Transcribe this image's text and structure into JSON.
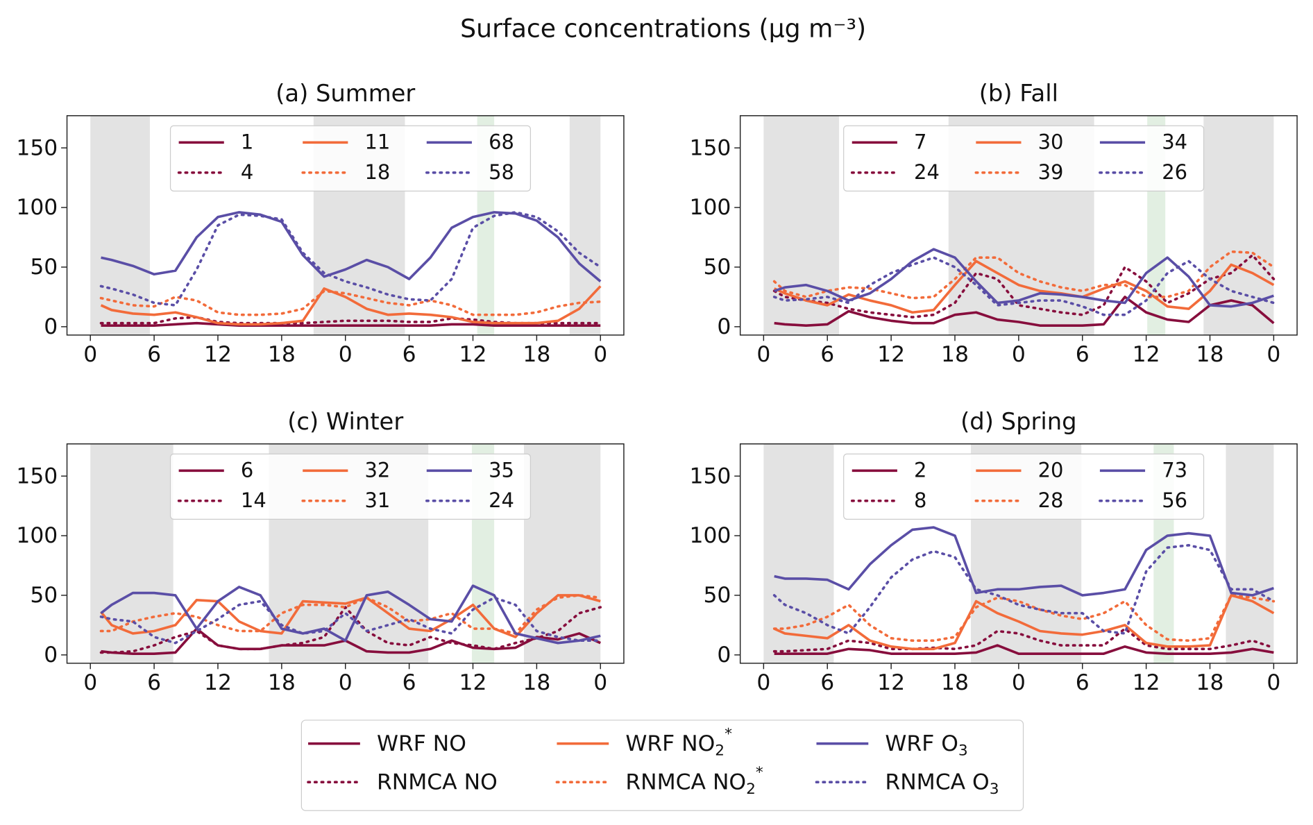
{
  "title": "Surface concentrations (μg m⁻³)",
  "legend": {
    "entries": [
      {
        "text": "WRF NO",
        "color": "#870e3d",
        "style": "solid"
      },
      {
        "text": "RNMCA NO",
        "color": "#870e3d",
        "style": "dotted"
      },
      {
        "text": "WRF NO",
        "sub": "2",
        "sup": "*",
        "color": "#f26b3a",
        "style": "solid"
      },
      {
        "text": "RNMCA NO",
        "sub": "2",
        "sup": "*",
        "color": "#f26b3a",
        "style": "dotted"
      },
      {
        "text": "WRF O",
        "sub": "3",
        "color": "#5a4ea6",
        "style": "solid"
      },
      {
        "text": "RNMCA O",
        "sub": "3",
        "color": "#5a4ea6",
        "style": "dotted"
      }
    ]
  },
  "chart_data": [
    {
      "type": "line",
      "title": "(a) Summer",
      "x": [
        1,
        2,
        4,
        6,
        8,
        10,
        12,
        14,
        16,
        18,
        20,
        22,
        24,
        26,
        28,
        30,
        32,
        34,
        36,
        38,
        40,
        42,
        44,
        46,
        48
      ],
      "xlim": [
        -2.2,
        50.2
      ],
      "ylim": [
        -7,
        177
      ],
      "xticks": [
        0,
        6,
        12,
        18,
        {
          "value": 24,
          "label": "0"
        },
        {
          "value": 30,
          "label": "6"
        },
        {
          "value": 36,
          "label": "12"
        },
        {
          "value": 42,
          "label": "18"
        },
        {
          "value": 48,
          "label": "0"
        }
      ],
      "yticks": [
        0,
        50,
        100,
        150
      ],
      "shaded": [
        {
          "start": 0,
          "end": 5.6,
          "color": "#e3e3e3"
        },
        {
          "start": 21,
          "end": 29.6,
          "color": "#e3e3e3"
        },
        {
          "start": 45.1,
          "end": 48,
          "color": "#e3e3e3"
        },
        {
          "start": 36.4,
          "end": 38,
          "color": "#e2efe2"
        }
      ],
      "series": [
        {
          "name": "1",
          "color": "#870e3d",
          "style": "solid",
          "values": [
            1,
            1,
            1,
            1,
            2,
            3,
            2,
            1,
            1,
            1,
            1,
            1,
            1,
            1,
            1,
            1,
            1,
            2,
            2,
            1,
            1,
            1,
            1,
            1,
            1
          ]
        },
        {
          "name": "4",
          "color": "#870e3d",
          "style": "dotted",
          "values": [
            3,
            3,
            3,
            3,
            7,
            8,
            4,
            3,
            3,
            3,
            3,
            4,
            5,
            5,
            5,
            4,
            4,
            7,
            6,
            4,
            3,
            3,
            3,
            3,
            3
          ]
        },
        {
          "name": "11",
          "color": "#f26b3a",
          "style": "solid",
          "values": [
            18,
            14,
            11,
            10,
            12,
            8,
            3,
            2,
            2,
            3,
            5,
            32,
            25,
            15,
            10,
            11,
            10,
            8,
            4,
            3,
            3,
            3,
            5,
            15,
            34
          ]
        },
        {
          "name": "18",
          "color": "#f26b3a",
          "style": "dotted",
          "values": [
            24,
            22,
            18,
            17,
            25,
            22,
            12,
            10,
            10,
            11,
            15,
            30,
            28,
            24,
            20,
            18,
            22,
            18,
            10,
            10,
            10,
            12,
            17,
            20,
            21
          ]
        },
        {
          "name": "68",
          "color": "#5a4ea6",
          "style": "solid",
          "values": [
            58,
            56,
            51,
            44,
            47,
            75,
            92,
            96,
            94,
            88,
            60,
            42,
            48,
            56,
            50,
            40,
            58,
            83,
            92,
            96,
            95,
            89,
            75,
            53,
            38
          ]
        },
        {
          "name": "58",
          "color": "#5a4ea6",
          "style": "dotted",
          "values": [
            34,
            32,
            27,
            20,
            18,
            48,
            85,
            94,
            93,
            90,
            62,
            45,
            38,
            33,
            27,
            23,
            22,
            40,
            83,
            93,
            96,
            92,
            80,
            62,
            50
          ]
        }
      ]
    },
    {
      "type": "line",
      "title": "(b) Fall",
      "x": [
        1,
        2,
        4,
        6,
        8,
        10,
        12,
        14,
        16,
        18,
        20,
        22,
        24,
        26,
        28,
        30,
        32,
        34,
        36,
        38,
        40,
        42,
        44,
        46,
        48
      ],
      "xlim": [
        -2.2,
        50.2
      ],
      "ylim": [
        -7,
        177
      ],
      "xticks": [
        0,
        6,
        12,
        18,
        {
          "value": 24,
          "label": "0"
        },
        {
          "value": 30,
          "label": "6"
        },
        {
          "value": 36,
          "label": "12"
        },
        {
          "value": 42,
          "label": "18"
        },
        {
          "value": 48,
          "label": "0"
        }
      ],
      "yticks": [
        0,
        50,
        100,
        150
      ],
      "shaded": [
        {
          "start": 0,
          "end": 7.1,
          "color": "#e3e3e3"
        },
        {
          "start": 17.4,
          "end": 31.1,
          "color": "#e3e3e3"
        },
        {
          "start": 41.4,
          "end": 48,
          "color": "#e3e3e3"
        },
        {
          "start": 36.1,
          "end": 37.8,
          "color": "#e2efe2"
        }
      ],
      "series": [
        {
          "name": "7",
          "color": "#870e3d",
          "style": "solid",
          "values": [
            3,
            2,
            1,
            2,
            13,
            8,
            5,
            3,
            3,
            10,
            12,
            6,
            4,
            1,
            1,
            1,
            2,
            25,
            12,
            6,
            4,
            18,
            22,
            18,
            3
          ]
        },
        {
          "name": "24",
          "color": "#870e3d",
          "style": "dotted",
          "values": [
            30,
            25,
            22,
            20,
            15,
            12,
            10,
            8,
            10,
            20,
            45,
            40,
            18,
            15,
            12,
            10,
            18,
            50,
            38,
            20,
            28,
            40,
            45,
            60,
            40
          ]
        },
        {
          "name": "30",
          "color": "#f26b3a",
          "style": "solid",
          "values": [
            32,
            28,
            22,
            18,
            27,
            22,
            18,
            12,
            14,
            35,
            55,
            45,
            35,
            30,
            28,
            25,
            32,
            38,
            30,
            17,
            15,
            30,
            52,
            45,
            35
          ]
        },
        {
          "name": "39",
          "color": "#f26b3a",
          "style": "dotted",
          "values": [
            38,
            30,
            25,
            30,
            33,
            32,
            28,
            24,
            25,
            40,
            58,
            58,
            45,
            38,
            33,
            30,
            35,
            35,
            25,
            25,
            30,
            50,
            63,
            62,
            50
          ]
        },
        {
          "name": "34",
          "color": "#5a4ea6",
          "style": "solid",
          "values": [
            30,
            33,
            35,
            30,
            22,
            28,
            40,
            55,
            65,
            58,
            38,
            20,
            22,
            28,
            27,
            25,
            22,
            20,
            45,
            58,
            42,
            18,
            17,
            20,
            26
          ]
        },
        {
          "name": "26",
          "color": "#5a4ea6",
          "style": "dotted",
          "values": [
            25,
            22,
            23,
            25,
            20,
            35,
            45,
            52,
            58,
            50,
            35,
            18,
            20,
            22,
            22,
            17,
            10,
            10,
            22,
            45,
            55,
            40,
            30,
            25,
            20
          ]
        }
      ]
    },
    {
      "type": "line",
      "title": "(c) Winter",
      "x": [
        1,
        2,
        4,
        6,
        8,
        10,
        12,
        14,
        16,
        18,
        20,
        22,
        24,
        26,
        28,
        30,
        32,
        34,
        36,
        38,
        40,
        42,
        44,
        46,
        48
      ],
      "xlim": [
        -2.2,
        50.2
      ],
      "ylim": [
        -7,
        177
      ],
      "xticks": [
        0,
        6,
        12,
        18,
        {
          "value": 24,
          "label": "0"
        },
        {
          "value": 30,
          "label": "6"
        },
        {
          "value": 36,
          "label": "12"
        },
        {
          "value": 42,
          "label": "18"
        },
        {
          "value": 48,
          "label": "0"
        }
      ],
      "yticks": [
        0,
        50,
        100,
        150
      ],
      "shaded": [
        {
          "start": 0,
          "end": 7.8,
          "color": "#e3e3e3"
        },
        {
          "start": 16.8,
          "end": 31.8,
          "color": "#e3e3e3"
        },
        {
          "start": 40.8,
          "end": 48,
          "color": "#e3e3e3"
        },
        {
          "start": 35.9,
          "end": 38,
          "color": "#e2efe2"
        }
      ],
      "series": [
        {
          "name": "6",
          "color": "#870e3d",
          "style": "solid",
          "values": [
            3,
            2,
            1,
            1,
            2,
            22,
            8,
            5,
            5,
            8,
            8,
            8,
            12,
            3,
            2,
            2,
            5,
            12,
            6,
            5,
            6,
            15,
            13,
            18,
            10
          ]
        },
        {
          "name": "14",
          "color": "#870e3d",
          "style": "dotted",
          "values": [
            2,
            2,
            3,
            8,
            15,
            20,
            8,
            5,
            5,
            8,
            10,
            15,
            40,
            20,
            10,
            8,
            15,
            10,
            8,
            5,
            10,
            14,
            20,
            35,
            40
          ]
        },
        {
          "name": "32",
          "color": "#f26b3a",
          "style": "solid",
          "values": [
            36,
            25,
            18,
            20,
            25,
            46,
            45,
            28,
            20,
            18,
            45,
            44,
            43,
            48,
            35,
            22,
            20,
            30,
            42,
            22,
            15,
            35,
            50,
            50,
            45
          ]
        },
        {
          "name": "31",
          "color": "#f26b3a",
          "style": "dotted",
          "values": [
            20,
            20,
            28,
            32,
            35,
            32,
            25,
            20,
            20,
            35,
            42,
            42,
            40,
            48,
            40,
            28,
            30,
            35,
            22,
            22,
            18,
            38,
            48,
            50,
            48
          ]
        },
        {
          "name": "35",
          "color": "#5a4ea6",
          "style": "solid",
          "values": [
            35,
            42,
            52,
            52,
            50,
            22,
            45,
            57,
            50,
            22,
            18,
            22,
            12,
            50,
            53,
            42,
            30,
            28,
            58,
            50,
            18,
            14,
            10,
            12,
            16
          ]
        },
        {
          "name": "24",
          "color": "#5a4ea6",
          "style": "dotted",
          "values": [
            32,
            30,
            28,
            15,
            10,
            20,
            30,
            42,
            45,
            25,
            18,
            20,
            35,
            20,
            25,
            30,
            22,
            18,
            38,
            48,
            42,
            20,
            15,
            12,
            12
          ]
        }
      ]
    },
    {
      "type": "line",
      "title": "(d) Spring",
      "x": [
        1,
        2,
        4,
        6,
        8,
        10,
        12,
        14,
        16,
        18,
        20,
        22,
        24,
        26,
        28,
        30,
        32,
        34,
        36,
        38,
        40,
        42,
        44,
        46,
        48
      ],
      "xlim": [
        -2.2,
        50.2
      ],
      "ylim": [
        -7,
        177
      ],
      "xticks": [
        0,
        6,
        12,
        18,
        {
          "value": 24,
          "label": "0"
        },
        {
          "value": 30,
          "label": "6"
        },
        {
          "value": 36,
          "label": "12"
        },
        {
          "value": 42,
          "label": "18"
        },
        {
          "value": 48,
          "label": "0"
        }
      ],
      "yticks": [
        0,
        50,
        100,
        150
      ],
      "shaded": [
        {
          "start": 0,
          "end": 6.6,
          "color": "#e3e3e3"
        },
        {
          "start": 19.5,
          "end": 29.9,
          "color": "#e3e3e3"
        },
        {
          "start": 43.5,
          "end": 48,
          "color": "#e3e3e3"
        },
        {
          "start": 36.7,
          "end": 38.6,
          "color": "#e2efe2"
        }
      ],
      "series": [
        {
          "name": "2",
          "color": "#870e3d",
          "style": "solid",
          "values": [
            1,
            1,
            1,
            1,
            5,
            4,
            1,
            1,
            1,
            1,
            2,
            8,
            1,
            1,
            1,
            1,
            1,
            7,
            2,
            1,
            1,
            1,
            2,
            5,
            2
          ]
        },
        {
          "name": "8",
          "color": "#870e3d",
          "style": "dotted",
          "values": [
            3,
            3,
            4,
            5,
            12,
            10,
            5,
            5,
            6,
            5,
            8,
            20,
            18,
            12,
            8,
            8,
            8,
            22,
            8,
            5,
            5,
            5,
            8,
            12,
            6
          ]
        },
        {
          "name": "20",
          "color": "#f26b3a",
          "style": "solid",
          "values": [
            22,
            18,
            16,
            14,
            25,
            12,
            7,
            5,
            5,
            10,
            45,
            35,
            28,
            20,
            18,
            17,
            20,
            25,
            10,
            7,
            7,
            8,
            50,
            45,
            35
          ]
        },
        {
          "name": "28",
          "color": "#f26b3a",
          "style": "dotted",
          "values": [
            22,
            22,
            25,
            32,
            42,
            25,
            14,
            12,
            12,
            15,
            40,
            48,
            45,
            38,
            33,
            30,
            35,
            45,
            25,
            13,
            12,
            14,
            50,
            48,
            45
          ]
        },
        {
          "name": "73",
          "color": "#5a4ea6",
          "style": "solid",
          "values": [
            66,
            64,
            64,
            63,
            55,
            76,
            92,
            105,
            107,
            100,
            52,
            55,
            55,
            57,
            58,
            50,
            52,
            55,
            88,
            100,
            102,
            100,
            52,
            50,
            56
          ]
        },
        {
          "name": "56",
          "color": "#5a4ea6",
          "style": "dotted",
          "values": [
            50,
            42,
            35,
            25,
            18,
            40,
            65,
            80,
            87,
            82,
            55,
            50,
            42,
            38,
            35,
            35,
            20,
            18,
            70,
            90,
            92,
            88,
            55,
            55,
            45
          ]
        }
      ]
    }
  ]
}
